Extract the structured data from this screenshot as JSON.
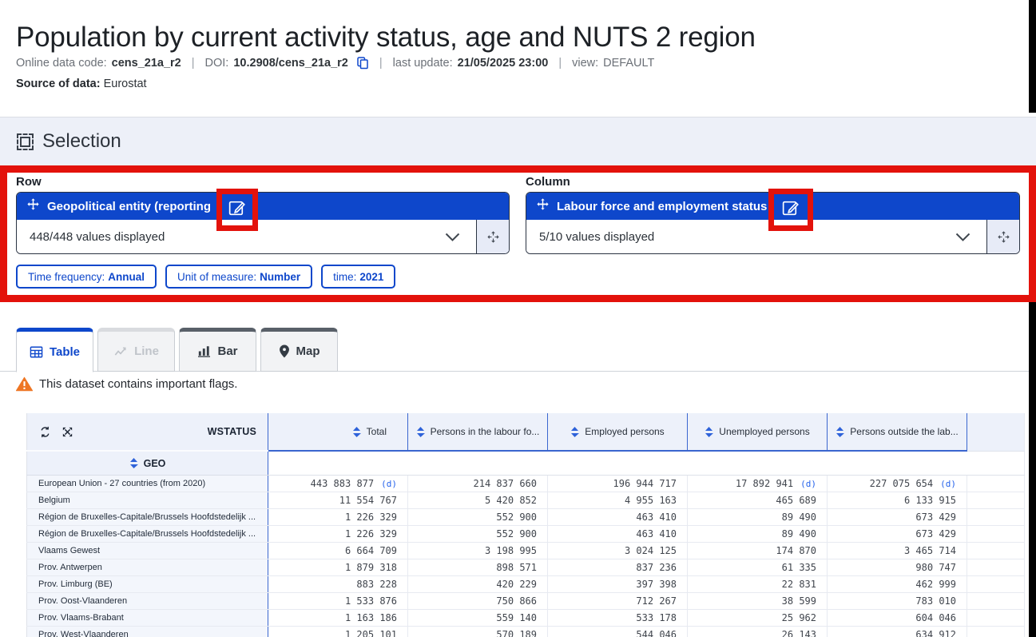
{
  "colors": {
    "accent_blue": "#0e47cb",
    "annotation_red": "#e3120b",
    "sort_arrow_blue": "#2e62d9",
    "flag_blue": "#2563eb",
    "warning_orange": "#ee7624"
  },
  "header": {
    "title": "Population by current activity status, age and NUTS 2 region",
    "meta": {
      "code_label": "Online data code:",
      "code_value": "cens_21a_r2",
      "separator": "|",
      "doi_label": "DOI:",
      "doi_value": "10.2908/cens_21a_r2",
      "update_label": "last update:",
      "update_value": "21/05/2025 23:00",
      "view_label": "view:",
      "view_value": "DEFAULT"
    },
    "source_label": "Source of data:",
    "source_value": "Eurostat"
  },
  "selection": {
    "title": "Selection",
    "row": {
      "label": "Row",
      "dimension": "Geopolitical entity (reporting",
      "values_displayed": "448/448 values displayed"
    },
    "column": {
      "label": "Column",
      "dimension": "Labour force and employment status",
      "values_displayed": "5/10 values displayed"
    },
    "chips": [
      {
        "label": "Time frequency:",
        "value": "Annual"
      },
      {
        "label": "Unit of measure:",
        "value": "Number"
      },
      {
        "label": "time:",
        "value": "2021"
      }
    ]
  },
  "tabs": [
    {
      "label": "Table",
      "icon": "table-grid-icon",
      "state": "active"
    },
    {
      "label": "Line",
      "icon": "line-chart-icon",
      "state": "disabled"
    },
    {
      "label": "Bar",
      "icon": "bar-chart-icon",
      "state": "normal"
    },
    {
      "label": "Map",
      "icon": "map-pin-icon",
      "state": "normal"
    }
  ],
  "warning_text": "This dataset contains important flags.",
  "table": {
    "corner_header": "WSTATUS",
    "row_header": "GEO",
    "columns": [
      "Total",
      "Persons in the labour fo...",
      "Employed persons",
      "Unemployed persons",
      "Persons outside the lab..."
    ],
    "rows": [
      {
        "geo": "European Union - 27 countries (from 2020)",
        "values": [
          "443 883 877",
          "214 837 660",
          "196 944 717",
          "17 892 941",
          "227 075 654"
        ],
        "flags": [
          "(d)",
          "",
          "",
          "(d)",
          "(d)"
        ]
      },
      {
        "geo": "Belgium",
        "values": [
          "11 554 767",
          "5 420 852",
          "4 955 163",
          "465 689",
          "6 133 915"
        ]
      },
      {
        "geo": "Région de Bruxelles-Capitale/Brussels Hoofdstedelijk ...",
        "values": [
          "1 226 329",
          "552 900",
          "463 410",
          "89 490",
          "673 429"
        ]
      },
      {
        "geo": "Région de Bruxelles-Capitale/Brussels Hoofdstedelijk ...",
        "values": [
          "1 226 329",
          "552 900",
          "463 410",
          "89 490",
          "673 429"
        ]
      },
      {
        "geo": "Vlaams Gewest",
        "values": [
          "6 664 709",
          "3 198 995",
          "3 024 125",
          "174 870",
          "3 465 714"
        ]
      },
      {
        "geo": "Prov. Antwerpen",
        "values": [
          "1 879 318",
          "898 571",
          "837 236",
          "61 335",
          "980 747"
        ]
      },
      {
        "geo": "Prov. Limburg (BE)",
        "values": [
          "883 228",
          "420 229",
          "397 398",
          "22 831",
          "462 999"
        ]
      },
      {
        "geo": "Prov. Oost-Vlaanderen",
        "values": [
          "1 533 876",
          "750 866",
          "712 267",
          "38 599",
          "783 010"
        ]
      },
      {
        "geo": "Prov. Vlaams-Brabant",
        "values": [
          "1 163 186",
          "559 140",
          "533 178",
          "25 962",
          "604 046"
        ]
      },
      {
        "geo": "Prov. West-Vlaanderen",
        "values": [
          "1 205 101",
          "570 189",
          "544 046",
          "26 143",
          "634 912"
        ]
      }
    ]
  }
}
